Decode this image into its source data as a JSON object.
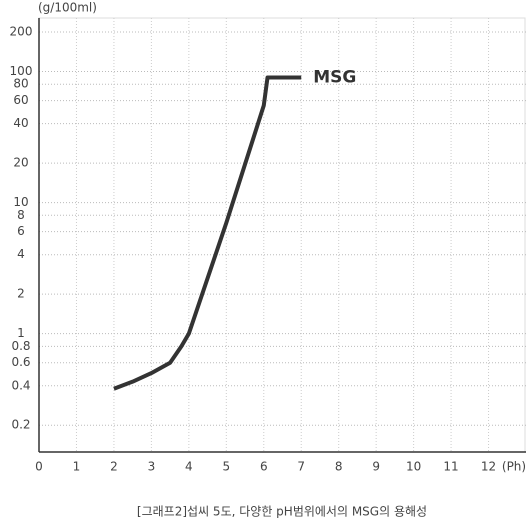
{
  "chart_data": {
    "type": "line",
    "y_label": "(g/100ml)",
    "x_label": "(Ph)",
    "caption": "[그래프2]섭씨 5도, 다양한 pH범위에서의 MSG의 용해성",
    "x": [
      2,
      2.5,
      3,
      3.5,
      3.8,
      4,
      5,
      6,
      6.1,
      7
    ],
    "series": [
      {
        "name": "MSG",
        "color": "#333333",
        "values": [
          0.38,
          0.43,
          0.5,
          0.6,
          0.8,
          1,
          7,
          55,
          90,
          90
        ]
      }
    ],
    "xlim": [
      0,
      13
    ],
    "xticks": [
      0,
      1,
      2,
      3,
      4,
      5,
      6,
      7,
      8,
      9,
      10,
      11,
      12
    ],
    "ylim": [
      0.125,
      256
    ],
    "yticks": [
      0.2,
      0.4,
      0.6,
      0.8,
      1,
      2,
      4,
      6,
      8,
      10,
      20,
      40,
      60,
      80,
      100,
      200
    ],
    "log_scale": true,
    "grid": true
  }
}
